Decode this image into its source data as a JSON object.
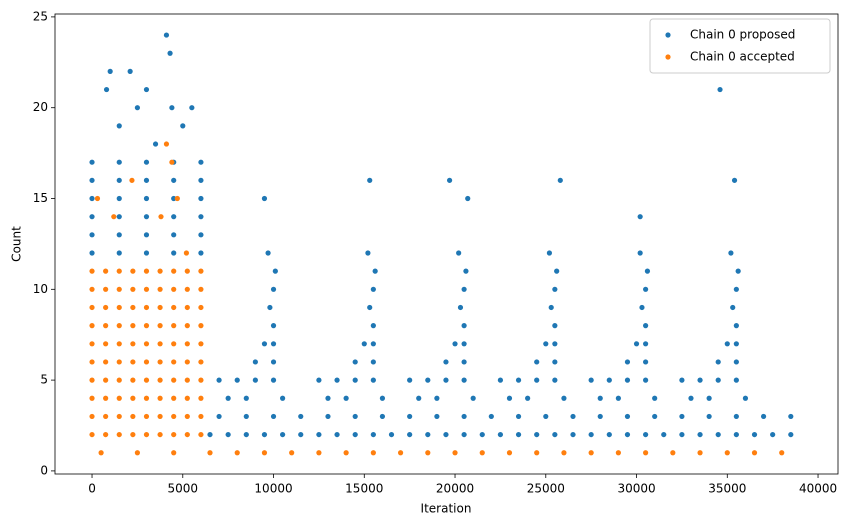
{
  "chart_data": {
    "type": "scatter",
    "xlabel": "Iteration",
    "ylabel": "Count",
    "xlim": [
      -2040,
      41100
    ],
    "ylim": [
      -0.17,
      25.16
    ],
    "xticks": [
      0,
      5000,
      10000,
      15000,
      20000,
      25000,
      30000,
      35000,
      40000
    ],
    "yticks": [
      0,
      5,
      10,
      15,
      20,
      25
    ],
    "legend": "upper right",
    "series": [
      {
        "name": "Chain 0 proposed",
        "color": "#1f77b4",
        "x": [
          0,
          1500,
          3000,
          4500,
          6000,
          0,
          1500,
          3000,
          4500,
          6000,
          0,
          1500,
          3000,
          4500,
          6000,
          0,
          1500,
          3000,
          4500,
          6000,
          0,
          1500,
          3000,
          4500,
          6000,
          0,
          1500,
          3000,
          4500,
          6000,
          800,
          1000,
          2100,
          2500,
          3000,
          3500,
          4100,
          4300,
          4400,
          5000,
          5500,
          1500,
          6500,
          7500,
          8500,
          9500,
          10500,
          11500,
          12500,
          13500,
          14500,
          15500,
          16500,
          17500,
          18500,
          19500,
          20500,
          21500,
          22500,
          23500,
          24500,
          25500,
          26500,
          27500,
          28500,
          29500,
          30500,
          31500,
          32500,
          33500,
          34500,
          35500,
          36500,
          37500,
          38500,
          7000,
          8500,
          10000,
          11500,
          13000,
          14500,
          16000,
          17500,
          19000,
          20500,
          22000,
          23500,
          25000,
          26500,
          28000,
          29500,
          31000,
          32500,
          34000,
          35500,
          37000,
          38500,
          7000,
          8000,
          9000,
          10000,
          9000,
          10000,
          9500,
          10000,
          10000,
          9800,
          10000,
          10100,
          9700,
          7500,
          8500,
          10500,
          12500,
          13500,
          14500,
          15500,
          14500,
          15500,
          15000,
          15500,
          15500,
          15300,
          15500,
          15600,
          15200,
          13000,
          14000,
          16000,
          17500,
          18500,
          19500,
          20500,
          19500,
          20500,
          20000,
          20500,
          20500,
          20300,
          20500,
          20600,
          20200,
          18000,
          19000,
          21000,
          22500,
          23500,
          24500,
          25500,
          24500,
          25500,
          25000,
          25500,
          25500,
          25300,
          25500,
          25600,
          25200,
          23000,
          24000,
          26000,
          27500,
          28500,
          29500,
          30500,
          29500,
          30500,
          30000,
          30500,
          30500,
          30300,
          30500,
          30600,
          30200,
          28000,
          29000,
          31000,
          32500,
          33500,
          34500,
          35500,
          34500,
          35500,
          35000,
          35500,
          35500,
          35300,
          35500,
          35600,
          35200,
          33000,
          34000,
          36000,
          9500,
          15300,
          19700,
          25800,
          34600,
          35400,
          20700,
          30200
        ],
        "values": [
          12,
          12,
          12,
          12,
          12,
          13,
          13,
          13,
          13,
          13,
          14,
          14,
          14,
          14,
          14,
          15,
          15,
          15,
          15,
          15,
          16,
          16,
          16,
          16,
          16,
          17,
          17,
          17,
          17,
          17,
          21,
          22,
          22,
          20,
          21,
          18,
          24,
          23,
          20,
          19,
          20,
          19,
          2,
          2,
          2,
          2,
          2,
          2,
          2,
          2,
          2,
          2,
          2,
          2,
          2,
          2,
          2,
          2,
          2,
          2,
          2,
          2,
          2,
          2,
          2,
          2,
          2,
          2,
          2,
          2,
          2,
          2,
          2,
          2,
          2,
          3,
          3,
          3,
          3,
          3,
          3,
          3,
          3,
          3,
          3,
          3,
          3,
          3,
          3,
          3,
          3,
          3,
          3,
          3,
          3,
          3,
          3,
          5,
          5,
          5,
          5,
          6,
          6,
          7,
          7,
          8,
          9,
          10,
          11,
          12,
          4,
          4,
          4,
          5,
          5,
          5,
          5,
          6,
          6,
          7,
          7,
          8,
          9,
          10,
          11,
          12,
          4,
          4,
          4,
          5,
          5,
          5,
          5,
          6,
          6,
          7,
          7,
          8,
          9,
          10,
          11,
          12,
          4,
          4,
          4,
          5,
          5,
          5,
          5,
          6,
          6,
          7,
          7,
          8,
          9,
          10,
          11,
          12,
          4,
          4,
          4,
          5,
          5,
          5,
          5,
          6,
          6,
          7,
          7,
          8,
          9,
          10,
          11,
          12,
          4,
          4,
          4,
          5,
          5,
          5,
          5,
          6,
          6,
          7,
          7,
          8,
          9,
          10,
          11,
          12,
          4,
          4,
          4,
          15,
          16,
          16,
          16,
          21,
          16,
          15,
          14
        ]
      },
      {
        "name": "Chain 0 accepted",
        "color": "#ff7f0e",
        "x": [
          0,
          750,
          1500,
          2250,
          3000,
          3750,
          4500,
          5250,
          6000,
          0,
          750,
          1500,
          2250,
          3000,
          3750,
          4500,
          5250,
          6000,
          0,
          750,
          1500,
          2250,
          3000,
          3750,
          4500,
          5250,
          6000,
          0,
          750,
          1500,
          2250,
          3000,
          3750,
          4500,
          5250,
          6000,
          0,
          750,
          1500,
          2250,
          3000,
          3750,
          4500,
          5250,
          6000,
          0,
          750,
          1500,
          2250,
          3000,
          3750,
          4500,
          5250,
          6000,
          0,
          750,
          1500,
          2250,
          3000,
          3750,
          4500,
          5250,
          6000,
          0,
          750,
          1500,
          2250,
          3000,
          3750,
          4500,
          5250,
          6000,
          0,
          750,
          1500,
          2250,
          3000,
          3750,
          4500,
          5250,
          6000,
          0,
          750,
          1500,
          2250,
          3000,
          3750,
          4500,
          5250,
          6000,
          500,
          2500,
          4500,
          300,
          1200,
          2200,
          3800,
          4100,
          4400,
          4700,
          5200,
          6500,
          8000,
          9500,
          11000,
          12500,
          14000,
          15500,
          17000,
          18500,
          20000,
          21500,
          23000,
          24500,
          26000,
          27500,
          29000,
          30500,
          32000,
          33500,
          35000,
          36500,
          38000
        ],
        "values": [
          2,
          2,
          2,
          2,
          2,
          2,
          2,
          2,
          2,
          3,
          3,
          3,
          3,
          3,
          3,
          3,
          3,
          3,
          4,
          4,
          4,
          4,
          4,
          4,
          4,
          4,
          4,
          5,
          5,
          5,
          5,
          5,
          5,
          5,
          5,
          5,
          6,
          6,
          6,
          6,
          6,
          6,
          6,
          6,
          6,
          7,
          7,
          7,
          7,
          7,
          7,
          7,
          7,
          7,
          8,
          8,
          8,
          8,
          8,
          8,
          8,
          8,
          8,
          9,
          9,
          9,
          9,
          9,
          9,
          9,
          9,
          9,
          10,
          10,
          10,
          10,
          10,
          10,
          10,
          10,
          10,
          11,
          11,
          11,
          11,
          11,
          11,
          11,
          11,
          11,
          1,
          1,
          1,
          15,
          14,
          16,
          14,
          18,
          17,
          15,
          12,
          1,
          1,
          1,
          1,
          1,
          1,
          1,
          1,
          1,
          1,
          1,
          1,
          1,
          1,
          1,
          1,
          1,
          1,
          1,
          1,
          1,
          1
        ]
      }
    ]
  }
}
